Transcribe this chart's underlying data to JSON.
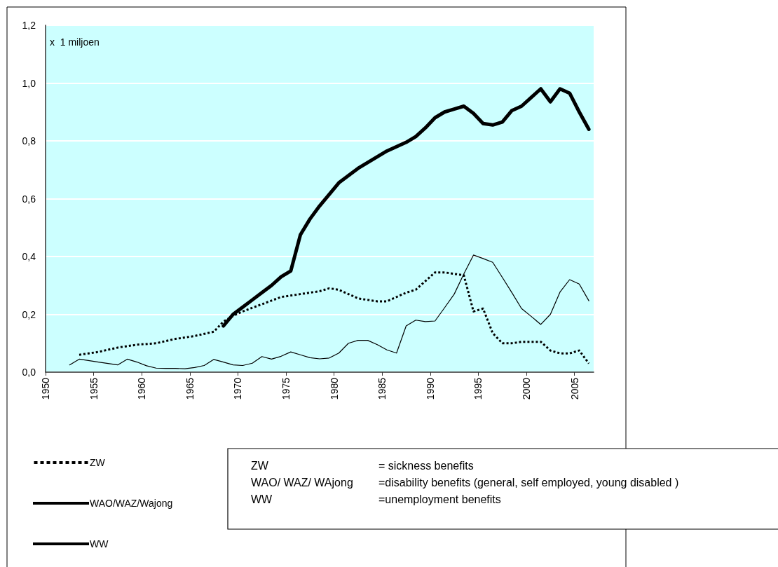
{
  "chart_data": {
    "type": "line",
    "ylabel": "x  1 miljoen",
    "xlim": [
      1950,
      2007
    ],
    "xticks": [
      1950,
      1955,
      1960,
      1965,
      1970,
      1975,
      1980,
      1985,
      1990,
      1995,
      2000,
      2005
    ],
    "ylim": [
      0,
      1.2
    ],
    "yticks": [
      {
        "value": 0,
        "label": "0,0"
      },
      {
        "value": 0.2,
        "label": "0,2"
      },
      {
        "value": 0.4,
        "label": "0,4"
      },
      {
        "value": 0.6,
        "label": "0,6"
      },
      {
        "value": 0.8,
        "label": "0,8"
      },
      {
        "value": 1.0,
        "label": "1,0"
      },
      {
        "value": 1.2,
        "label": "1,2"
      }
    ],
    "grid": "y",
    "legend": "bottom left",
    "marker": "none",
    "series": [
      {
        "name": "ZW",
        "color": "#000000",
        "line_style": "dotted",
        "x": [
          1953.5,
          1955.5,
          1957.5,
          1959.5,
          1961.5,
          1963.5,
          1965.5,
          1967.5,
          1968.5,
          1969.5,
          1970.5,
          1972.5,
          1974.5,
          1976.5,
          1978.5,
          1979.5,
          1980.5,
          1981.5,
          1982.5,
          1983.5,
          1984.5,
          1985.5,
          1986.5,
          1987.5,
          1988.5,
          1989.5,
          1990.5,
          1991.5,
          1992.5,
          1993.5,
          1994.5,
          1995.5,
          1996.5,
          1997.5,
          1998.5,
          1999.5,
          2000.5,
          2001.5,
          2002.5,
          2003.5,
          2004.5,
          2005.5,
          2006.5
        ],
        "values": [
          0.06,
          0.07,
          0.085,
          0.095,
          0.1,
          0.115,
          0.125,
          0.14,
          0.175,
          0.195,
          0.21,
          0.235,
          0.26,
          0.27,
          0.28,
          0.29,
          0.285,
          0.27,
          0.255,
          0.25,
          0.245,
          0.245,
          0.26,
          0.275,
          0.285,
          0.315,
          0.345,
          0.345,
          0.34,
          0.335,
          0.21,
          0.22,
          0.135,
          0.1,
          0.1,
          0.105,
          0.105,
          0.105,
          0.075,
          0.065,
          0.065,
          0.075,
          0.03
        ]
      },
      {
        "name": "WAO/WAZ/Wajong",
        "color": "#000000",
        "line_style": "solid",
        "x": [
          1968.5,
          1969.5,
          1970.5,
          1971.5,
          1972.5,
          1973.5,
          1974.5,
          1975.5,
          1976.5,
          1977.5,
          1978.5,
          1979.5,
          1980.5,
          1981.5,
          1982.5,
          1983.5,
          1984.5,
          1985.5,
          1986.5,
          1987.5,
          1988.5,
          1989.5,
          1990.5,
          1991.5,
          1992.5,
          1993.5,
          1994.5,
          1995.5,
          1996.5,
          1997.5,
          1998.5,
          1999.5,
          2000.5,
          2001.5,
          2002.5,
          2003.5,
          2004.5,
          2005.5,
          2006.5
        ],
        "values": [
          0.16,
          0.2,
          0.225,
          0.25,
          0.275,
          0.3,
          0.33,
          0.35,
          0.475,
          0.53,
          0.575,
          0.615,
          0.655,
          0.68,
          0.705,
          0.725,
          0.745,
          0.765,
          0.78,
          0.795,
          0.815,
          0.845,
          0.88,
          0.9,
          0.91,
          0.92,
          0.895,
          0.86,
          0.855,
          0.865,
          0.905,
          0.92,
          0.95,
          0.98,
          0.935,
          0.98,
          0.965,
          0.9,
          0.84
        ]
      },
      {
        "name": "WW",
        "color": "#000000",
        "line_style": "solid",
        "x": [
          1952.5,
          1953.5,
          1955.5,
          1957.5,
          1958.5,
          1959.5,
          1960.5,
          1961.5,
          1962.5,
          1963.5,
          1964.5,
          1965.5,
          1966.5,
          1967.5,
          1968.5,
          1969.5,
          1970.5,
          1971.5,
          1972.5,
          1973.5,
          1974.5,
          1975.5,
          1976.5,
          1977.5,
          1978.5,
          1979.5,
          1980.5,
          1981.5,
          1982.5,
          1983.5,
          1984.5,
          1985.5,
          1986.5,
          1987.5,
          1988.5,
          1989.5,
          1990.5,
          1991.5,
          1992.5,
          1993.5,
          1994.5,
          1995.5,
          1996.5,
          1997.5,
          1998.5,
          1999.5,
          2000.5,
          2001.5,
          2002.5,
          2003.5,
          2004.5,
          2005.5,
          2006.5
        ],
        "values": [
          0.025,
          0.045,
          0.035,
          0.025,
          0.045,
          0.035,
          0.022,
          0.014,
          0.013,
          0.013,
          0.012,
          0.016,
          0.023,
          0.044,
          0.035,
          0.025,
          0.023,
          0.031,
          0.054,
          0.045,
          0.055,
          0.07,
          0.06,
          0.05,
          0.046,
          0.049,
          0.066,
          0.1,
          0.11,
          0.11,
          0.095,
          0.077,
          0.066,
          0.16,
          0.18,
          0.175,
          0.177,
          0.223,
          0.27,
          0.34,
          0.405,
          0.393,
          0.38,
          0.328,
          0.275,
          0.22,
          0.193,
          0.165,
          0.2,
          0.277,
          0.32,
          0.305,
          0.247
        ]
      }
    ],
    "annotations": [
      "ZW",
      "= sickness benefits",
      "WAO/ WAZ/ WAjong",
      "=disability benefits (general, self employed, young disabled )",
      "WW",
      "=unemployment benefits"
    ]
  }
}
